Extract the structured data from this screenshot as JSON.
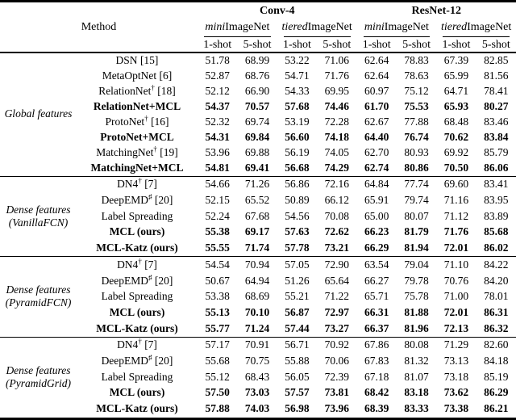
{
  "header": {
    "method_label": "Method",
    "backbones": [
      {
        "label": "Conv-4"
      },
      {
        "label": "ResNet-12"
      }
    ],
    "datasets": [
      {
        "prefix": "mini",
        "suffix": "ImageNet"
      },
      {
        "prefix": "tiered",
        "suffix": "ImageNet"
      },
      {
        "prefix": "mini",
        "suffix": "ImageNet"
      },
      {
        "prefix": "tiered",
        "suffix": "ImageNet"
      }
    ],
    "shots": [
      "1-shot",
      "5-shot",
      "1-shot",
      "5-shot",
      "1-shot",
      "5-shot",
      "1-shot",
      "5-shot"
    ]
  },
  "groups": [
    {
      "label_lines": [
        "Global features"
      ],
      "rows": [
        {
          "pre": "DSN",
          "sup": "",
          "post": " [15]",
          "bold": false,
          "values": [
            "51.78",
            "68.99",
            "53.22",
            "71.06",
            "62.64",
            "78.83",
            "67.39",
            "82.85"
          ]
        },
        {
          "pre": "MetaOptNet",
          "sup": "",
          "post": " [6]",
          "bold": false,
          "values": [
            "52.87",
            "68.76",
            "54.71",
            "71.76",
            "62.64",
            "78.63",
            "65.99",
            "81.56"
          ]
        },
        {
          "pre": "RelationNet",
          "sup": "†",
          "post": " [18]",
          "bold": false,
          "values": [
            "52.12",
            "66.90",
            "54.33",
            "69.95",
            "60.97",
            "75.12",
            "64.71",
            "78.41"
          ]
        },
        {
          "pre": "RelationNet+MCL",
          "sup": "",
          "post": "",
          "bold": true,
          "values": [
            "54.37",
            "70.57",
            "57.68",
            "74.46",
            "61.70",
            "75.53",
            "65.93",
            "80.27"
          ]
        },
        {
          "pre": "ProtoNet",
          "sup": "†",
          "post": " [16]",
          "bold": false,
          "values": [
            "52.32",
            "69.74",
            "53.19",
            "72.28",
            "62.67",
            "77.88",
            "68.48",
            "83.46"
          ]
        },
        {
          "pre": "ProtoNet+MCL",
          "sup": "",
          "post": "",
          "bold": true,
          "values": [
            "54.31",
            "69.84",
            "56.60",
            "74.18",
            "64.40",
            "76.74",
            "70.62",
            "83.84"
          ]
        },
        {
          "pre": "MatchingNet",
          "sup": "†",
          "post": " [19]",
          "bold": false,
          "values": [
            "53.96",
            "69.88",
            "56.19",
            "74.05",
            "62.70",
            "80.93",
            "69.92",
            "85.79"
          ]
        },
        {
          "pre": "MatchingNet+MCL",
          "sup": "",
          "post": "",
          "bold": true,
          "values": [
            "54.81",
            "69.41",
            "56.68",
            "74.29",
            "62.74",
            "80.86",
            "70.50",
            "86.06"
          ]
        }
      ]
    },
    {
      "label_lines": [
        "Dense features",
        "(VanillaFCN)"
      ],
      "rows": [
        {
          "pre": "DN4",
          "sup": "†",
          "post": " [7]",
          "bold": false,
          "values": [
            "54.66",
            "71.26",
            "56.86",
            "72.16",
            "64.84",
            "77.74",
            "69.60",
            "83.41"
          ]
        },
        {
          "pre": "DeepEMD",
          "sup": "♯",
          "post": " [20]",
          "bold": false,
          "values": [
            "52.15",
            "65.52",
            "50.89",
            "66.12",
            "65.91",
            "79.74",
            "71.16",
            "83.95"
          ]
        },
        {
          "pre": "Label Spreading",
          "sup": "",
          "post": "",
          "bold": false,
          "values": [
            "52.24",
            "67.68",
            "54.56",
            "70.08",
            "65.00",
            "80.07",
            "71.12",
            "83.89"
          ]
        },
        {
          "pre": "MCL (ours)",
          "sup": "",
          "post": "",
          "bold": true,
          "values": [
            "55.38",
            "69.17",
            "57.63",
            "72.62",
            "66.23",
            "81.79",
            "71.76",
            "85.68"
          ]
        },
        {
          "pre": "MCL-Katz (ours)",
          "sup": "",
          "post": "",
          "bold": true,
          "values": [
            "55.55",
            "71.74",
            "57.78",
            "73.21",
            "66.29",
            "81.94",
            "72.01",
            "86.02"
          ]
        }
      ]
    },
    {
      "label_lines": [
        "Dense features",
        "(PyramidFCN)"
      ],
      "rows": [
        {
          "pre": "DN4",
          "sup": "†",
          "post": " [7]",
          "bold": false,
          "values": [
            "54.54",
            "70.94",
            "57.05",
            "72.90",
            "63.54",
            "79.04",
            "71.10",
            "84.22"
          ]
        },
        {
          "pre": "DeepEMD",
          "sup": "♯",
          "post": " [20]",
          "bold": false,
          "values": [
            "50.67",
            "64.94",
            "51.26",
            "65.64",
            "66.27",
            "79.78",
            "70.76",
            "84.20"
          ]
        },
        {
          "pre": "Label Spreading",
          "sup": "",
          "post": "",
          "bold": false,
          "values": [
            "53.38",
            "68.69",
            "55.21",
            "71.22",
            "65.71",
            "75.78",
            "71.00",
            "78.01"
          ]
        },
        {
          "pre": "MCL (ours)",
          "sup": "",
          "post": "",
          "bold": true,
          "values": [
            "55.13",
            "70.10",
            "56.87",
            "72.97",
            "66.31",
            "81.88",
            "72.01",
            "86.31"
          ]
        },
        {
          "pre": "MCL-Katz (ours)",
          "sup": "",
          "post": "",
          "bold": true,
          "values": [
            "55.77",
            "71.24",
            "57.44",
            "73.27",
            "66.37",
            "81.96",
            "72.13",
            "86.32"
          ]
        }
      ]
    },
    {
      "label_lines": [
        "Dense features",
        "(PyramidGrid)"
      ],
      "rows": [
        {
          "pre": "DN4",
          "sup": "†",
          "post": " [7]",
          "bold": false,
          "values": [
            "57.17",
            "70.91",
            "56.71",
            "70.92",
            "67.86",
            "80.08",
            "71.29",
            "82.60"
          ]
        },
        {
          "pre": "DeepEMD",
          "sup": "♯",
          "post": " [20]",
          "bold": false,
          "values": [
            "55.68",
            "70.75",
            "55.88",
            "70.06",
            "67.83",
            "81.32",
            "73.13",
            "84.18"
          ]
        },
        {
          "pre": "Label Spreading",
          "sup": "",
          "post": "",
          "bold": false,
          "values": [
            "55.12",
            "68.43",
            "56.05",
            "72.39",
            "67.18",
            "81.07",
            "73.18",
            "85.19"
          ]
        },
        {
          "pre": "MCL (ours)",
          "sup": "",
          "post": "",
          "bold": true,
          "values": [
            "57.50",
            "73.03",
            "57.57",
            "73.81",
            "68.42",
            "83.18",
            "73.62",
            "86.29"
          ]
        },
        {
          "pre": "MCL-Katz (ours)",
          "sup": "",
          "post": "",
          "bold": true,
          "values": [
            "57.88",
            "74.03",
            "56.98",
            "73.96",
            "68.39",
            "83.33",
            "73.38",
            "86.21"
          ]
        }
      ]
    }
  ]
}
